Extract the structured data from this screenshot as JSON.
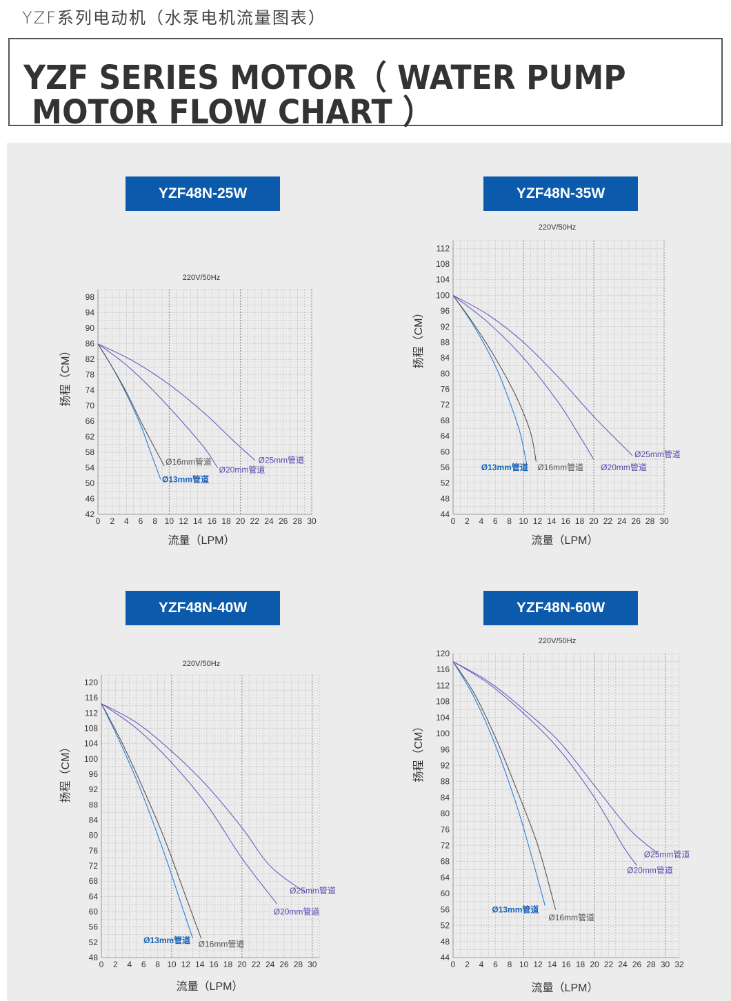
{
  "header": {
    "subtitle_cn": "YZF系列电动机（水泵电机流量图表）",
    "title_line1": "YZF SERIES MOTOR（ WATER PUMP",
    "title_line2": " MOTOR FLOW CHART ）"
  },
  "colors": {
    "tag_bg": "#0b5aab",
    "blue_curve": "#2a7ed0",
    "gray_curve": "#555555",
    "purple_curve": "#6e5cc0",
    "grid_minor": "#b8b8b8",
    "grid_major": "#777777",
    "panel_bg": "#ececec"
  },
  "chart_data": [
    {
      "model": "YZF48N-25W",
      "type": "line",
      "title": "220V/50Hz",
      "xlabel": "流量（LPM）",
      "ylabel": "扬程（CM）",
      "xlim": [
        0,
        30
      ],
      "ylim": [
        42,
        100
      ],
      "xticks": [
        0,
        2,
        4,
        6,
        8,
        10,
        12,
        14,
        16,
        18,
        20,
        22,
        24,
        26,
        28,
        30
      ],
      "yticks": [
        42,
        46,
        50,
        54,
        58,
        62,
        66,
        70,
        74,
        78,
        82,
        86,
        90,
        94,
        98
      ],
      "grid": true,
      "series": [
        {
          "name": "Ø13mm管道",
          "color": "blue",
          "points": [
            [
              0,
              86
            ],
            [
              2,
              80
            ],
            [
              4,
              73
            ],
            [
              6,
              65
            ],
            [
              7,
              60
            ],
            [
              8,
              55
            ],
            [
              8.8,
              51
            ]
          ],
          "label_at": [
            9,
            51
          ]
        },
        {
          "name": "Ø16mm管道",
          "color": "gray",
          "points": [
            [
              0,
              86
            ],
            [
              2,
              80
            ],
            [
              4,
              73.5
            ],
            [
              6,
              66
            ],
            [
              8,
              59
            ],
            [
              9.3,
              54.5
            ]
          ],
          "label_at": [
            9.5,
            55.5
          ]
        },
        {
          "name": "Ø20mm管道",
          "color": "purple",
          "points": [
            [
              0,
              86
            ],
            [
              4,
              80.5
            ],
            [
              8,
              73.5
            ],
            [
              12,
              65.5
            ],
            [
              15,
              59
            ],
            [
              16.8,
              54
            ]
          ],
          "label_at": [
            17,
            53.5
          ]
        },
        {
          "name": "Ø25mm管道",
          "color": "purple",
          "points": [
            [
              0,
              86
            ],
            [
              5,
              81.5
            ],
            [
              10,
              75.5
            ],
            [
              15,
              68
            ],
            [
              19,
              61
            ],
            [
              22,
              56
            ]
          ],
          "label_at": [
            22.5,
            56
          ]
        }
      ]
    },
    {
      "model": "YZF48N-35W",
      "type": "line",
      "title": "220V/50Hz",
      "xlabel": "流量（LPM）",
      "ylabel": "扬程（CM）",
      "xlim": [
        0,
        30
      ],
      "ylim": [
        44,
        114
      ],
      "xticks": [
        0,
        2,
        4,
        6,
        8,
        10,
        12,
        14,
        16,
        18,
        20,
        22,
        24,
        26,
        28,
        30
      ],
      "yticks": [
        44,
        48,
        52,
        56,
        60,
        64,
        68,
        72,
        76,
        80,
        84,
        88,
        92,
        96,
        100,
        104,
        108,
        112
      ],
      "grid": true,
      "series": [
        {
          "name": "Ø13mm管道",
          "color": "blue",
          "points": [
            [
              0,
              100
            ],
            [
              3,
              92
            ],
            [
              6,
              82
            ],
            [
              8,
              73
            ],
            [
              9.5,
              65
            ],
            [
              10.5,
              56.5
            ]
          ],
          "label_at": [
            4,
            56
          ]
        },
        {
          "name": "Ø16mm管道",
          "color": "gray",
          "points": [
            [
              0,
              100
            ],
            [
              3,
              92.5
            ],
            [
              6,
              84
            ],
            [
              9,
              74
            ],
            [
              11,
              65
            ],
            [
              11.8,
              57.5
            ]
          ],
          "label_at": [
            12,
            56
          ]
        },
        {
          "name": "Ø20mm管道",
          "color": "purple",
          "points": [
            [
              0,
              100
            ],
            [
              5,
              93
            ],
            [
              10,
              84
            ],
            [
              15,
              72.5
            ],
            [
              18,
              64
            ],
            [
              20,
              58
            ]
          ],
          "label_at": [
            21,
            56
          ]
        },
        {
          "name": "Ø25mm管道",
          "color": "purple",
          "points": [
            [
              0,
              100
            ],
            [
              5,
              95
            ],
            [
              10,
              88
            ],
            [
              15,
              79
            ],
            [
              20,
              69
            ],
            [
              25.5,
              59
            ]
          ],
          "label_at": [
            25.8,
            59.3
          ]
        }
      ]
    },
    {
      "model": "YZF48N-40W",
      "type": "line",
      "title": "220V/50Hz",
      "xlabel": "流量（LPM）",
      "ylabel": "扬程（CM）",
      "xlim": [
        0,
        31
      ],
      "ylim": [
        48,
        122
      ],
      "xticks": [
        0,
        2,
        4,
        6,
        8,
        10,
        12,
        14,
        16,
        18,
        20,
        22,
        24,
        26,
        28,
        30
      ],
      "yticks": [
        48,
        52,
        56,
        60,
        64,
        68,
        72,
        76,
        80,
        84,
        88,
        92,
        96,
        100,
        104,
        108,
        112,
        116,
        120
      ],
      "grid": true,
      "series": [
        {
          "name": "Ø13mm管道",
          "color": "blue",
          "points": [
            [
              0,
              114.5
            ],
            [
              3,
              103
            ],
            [
              6,
              90
            ],
            [
              9,
              75
            ],
            [
              11,
              64
            ],
            [
              13,
              53
            ]
          ],
          "label_at": [
            6,
            52.5
          ]
        },
        {
          "name": "Ø16mm管道",
          "color": "gray",
          "points": [
            [
              0,
              114.5
            ],
            [
              3,
              104
            ],
            [
              6,
              92
            ],
            [
              9,
              79
            ],
            [
              12,
              64
            ],
            [
              14.2,
              53
            ]
          ],
          "label_at": [
            13.8,
            51.5
          ]
        },
        {
          "name": "Ø20mm管道",
          "color": "purple",
          "points": [
            [
              0,
              114.5
            ],
            [
              5,
              108
            ],
            [
              10,
              99
            ],
            [
              15,
              88
            ],
            [
              20,
              74
            ],
            [
              25,
              62
            ]
          ],
          "label_at": [
            24.5,
            60
          ]
        },
        {
          "name": "Ø25mm管道",
          "color": "purple",
          "points": [
            [
              0,
              114.5
            ],
            [
              5,
              109.5
            ],
            [
              10,
              102
            ],
            [
              15,
              93
            ],
            [
              20,
              82
            ],
            [
              24,
              72
            ],
            [
              29,
              65
            ]
          ],
          "label_at": [
            26.8,
            65.5
          ]
        }
      ]
    },
    {
      "model": "YZF48N-60W",
      "type": "line",
      "title": "220V/50Hz",
      "xlabel": "流量（LPM）",
      "ylabel": "扬程（CM）",
      "xlim": [
        0,
        32
      ],
      "ylim": [
        44,
        120
      ],
      "xticks": [
        0,
        2,
        4,
        6,
        8,
        10,
        12,
        14,
        16,
        18,
        20,
        22,
        24,
        26,
        28,
        30,
        32
      ],
      "yticks": [
        44,
        48,
        52,
        56,
        60,
        64,
        68,
        72,
        76,
        80,
        84,
        88,
        92,
        96,
        100,
        104,
        108,
        112,
        116,
        120
      ],
      "grid": true,
      "series": [
        {
          "name": "Ø13mm管道",
          "color": "blue",
          "points": [
            [
              0,
              118
            ],
            [
              3,
              109
            ],
            [
              6,
              97
            ],
            [
              9,
              82
            ],
            [
              11,
              70
            ],
            [
              13,
              57
            ]
          ],
          "label_at": [
            5.5,
            56
          ]
        },
        {
          "name": "Ø16mm管道",
          "color": "gray",
          "points": [
            [
              0,
              118
            ],
            [
              3,
              110
            ],
            [
              6,
              99
            ],
            [
              9,
              86
            ],
            [
              12,
              72
            ],
            [
              14.5,
              56
            ]
          ],
          "label_at": [
            13.5,
            54
          ]
        },
        {
          "name": "Ø20mm管道",
          "color": "purple",
          "points": [
            [
              0,
              118
            ],
            [
              5,
              112.5
            ],
            [
              10,
              105
            ],
            [
              15,
              96
            ],
            [
              20,
              84
            ],
            [
              24,
              72
            ],
            [
              26,
              67
            ]
          ],
          "label_at": [
            24.6,
            65.8
          ]
        },
        {
          "name": "Ø25mm管道",
          "color": "purple",
          "points": [
            [
              0,
              118
            ],
            [
              5,
              113
            ],
            [
              10,
              106
            ],
            [
              15,
              98
            ],
            [
              20,
              87
            ],
            [
              25,
              76
            ],
            [
              29,
              70
            ]
          ],
          "label_at": [
            27,
            69.8
          ]
        }
      ]
    }
  ]
}
